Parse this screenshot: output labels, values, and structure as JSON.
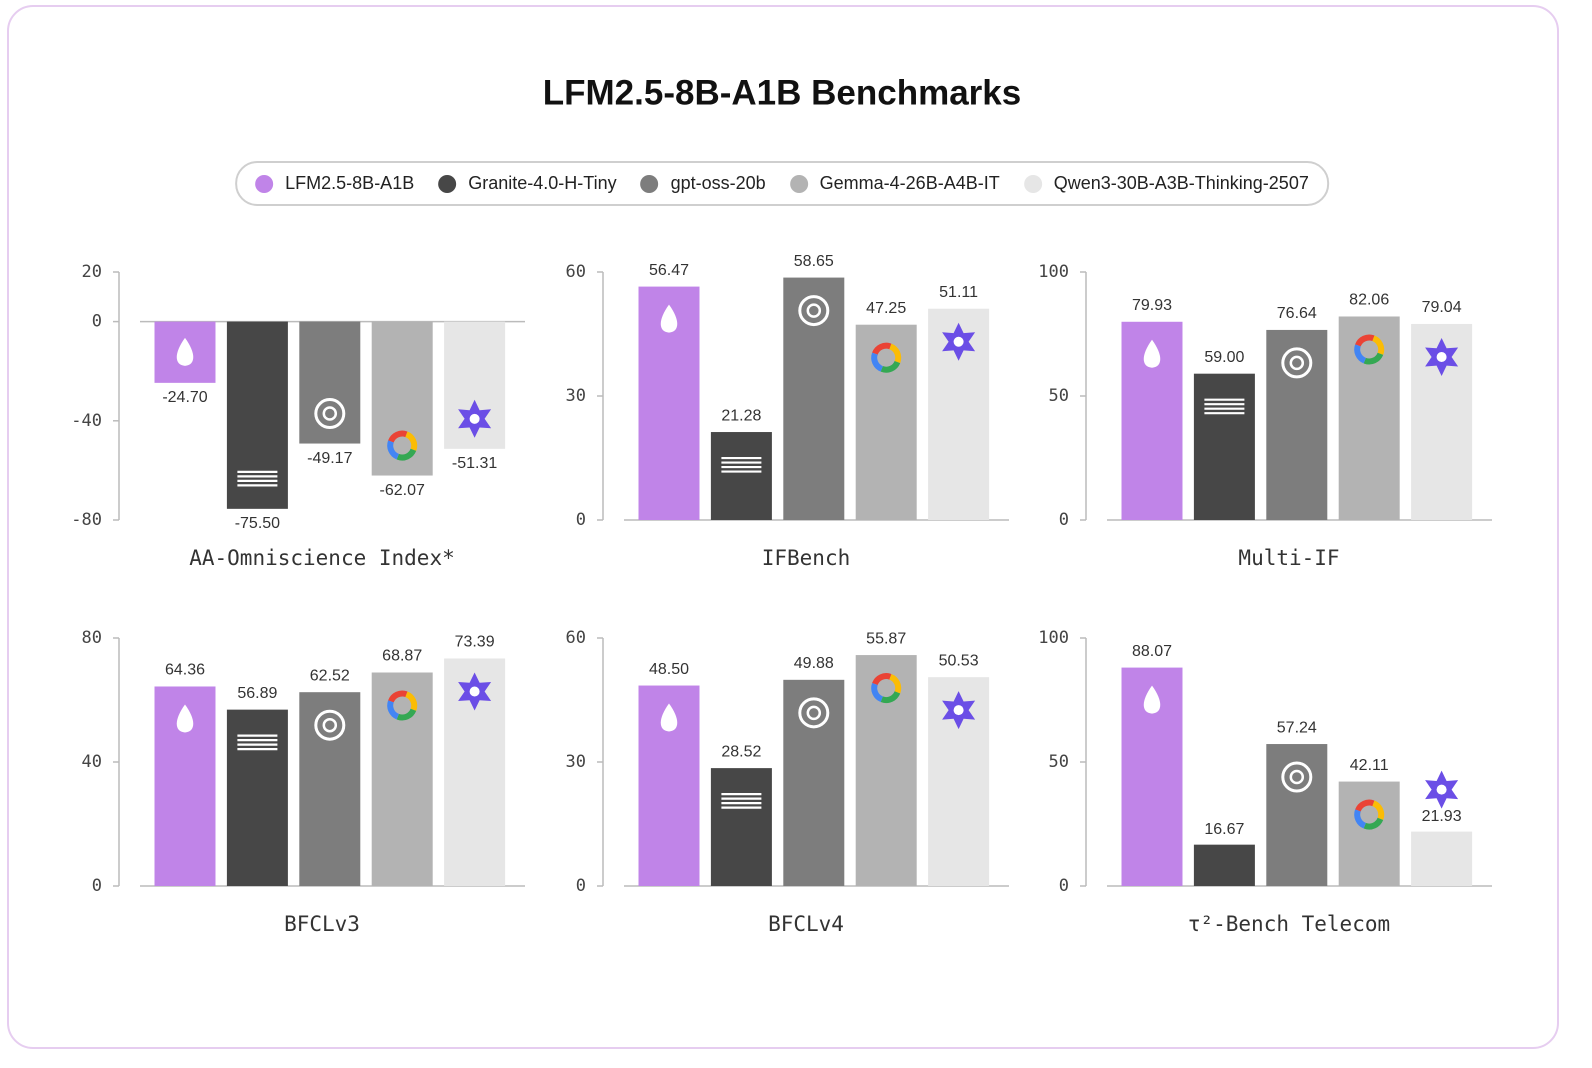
{
  "title": "LFM2.5-8B-A1B Benchmarks",
  "legend": [
    {
      "name": "LFM2.5-8B-A1B",
      "color": "#c084e8"
    },
    {
      "name": "Granite-4.0-H-Tiny",
      "color": "#474747"
    },
    {
      "name": "gpt-oss-20b",
      "color": "#7d7d7d"
    },
    {
      "name": "Gemma-4-26B-A4B-IT",
      "color": "#b3b3b3"
    },
    {
      "name": "Qwen3-30B-A3B-Thinking-2507",
      "color": "#e6e6e6"
    }
  ],
  "chart_data": [
    {
      "type": "bar",
      "title": "AA-Omniscience Index*",
      "values": [
        -24.7,
        -75.5,
        -49.17,
        -62.07,
        -51.31
      ],
      "value_labels": [
        "-24.70",
        "-75.50",
        "-49.17",
        "-62.07",
        "-51.31"
      ],
      "ylim": [
        -80,
        20
      ],
      "yticks": [
        -80,
        -40,
        0,
        20
      ]
    },
    {
      "type": "bar",
      "title": "IFBench",
      "values": [
        56.47,
        21.28,
        58.65,
        47.25,
        51.11
      ],
      "value_labels": [
        "56.47",
        "21.28",
        "58.65",
        "47.25",
        "51.11"
      ],
      "ylim": [
        0,
        60
      ],
      "yticks": [
        0,
        30,
        60
      ]
    },
    {
      "type": "bar",
      "title": "Multi-IF",
      "values": [
        79.93,
        59.0,
        76.64,
        82.06,
        79.04
      ],
      "value_labels": [
        "79.93",
        "59.00",
        "76.64",
        "82.06",
        "79.04"
      ],
      "ylim": [
        0,
        100
      ],
      "yticks": [
        0,
        50,
        100
      ]
    },
    {
      "type": "bar",
      "title": "BFCLv3",
      "values": [
        64.36,
        56.89,
        62.52,
        68.87,
        73.39
      ],
      "value_labels": [
        "64.36",
        "56.89",
        "62.52",
        "68.87",
        "73.39"
      ],
      "ylim": [
        0,
        80
      ],
      "yticks": [
        0,
        40,
        80
      ]
    },
    {
      "type": "bar",
      "title": "BFCLv4",
      "values": [
        48.5,
        28.52,
        49.88,
        55.87,
        50.53
      ],
      "value_labels": [
        "48.50",
        "28.52",
        "49.88",
        "55.87",
        "50.53"
      ],
      "ylim": [
        0,
        60
      ],
      "yticks": [
        0,
        30,
        60
      ]
    },
    {
      "type": "bar",
      "title": "τ²-Bench Telecom",
      "values": [
        88.07,
        16.67,
        57.24,
        42.11,
        21.93
      ],
      "value_labels": [
        "88.07",
        "16.67",
        "57.24",
        "42.11",
        "21.93"
      ],
      "ylim": [
        0,
        100
      ],
      "yticks": [
        0,
        50,
        100
      ]
    }
  ]
}
